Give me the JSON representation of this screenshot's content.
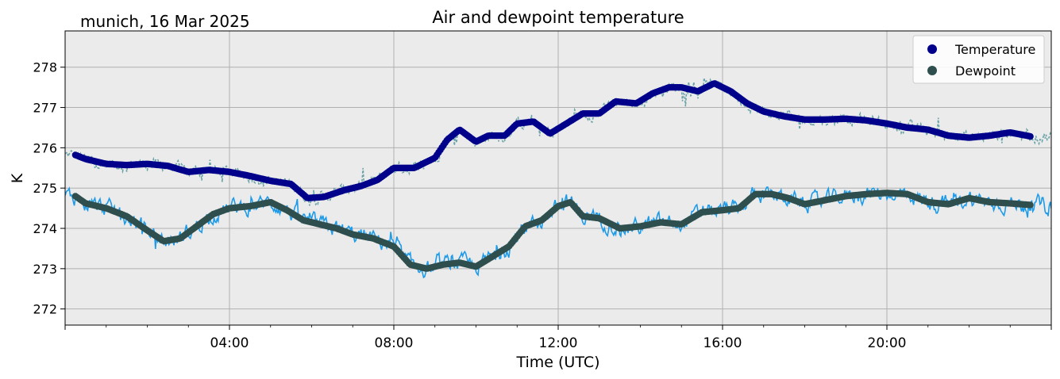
{
  "header": {
    "location_date": "munich, 16 Mar 2025",
    "title": "Air and dewpoint temperature"
  },
  "colors": {
    "panel_background": "#ebebeb",
    "grid": "#b0b0b0",
    "temperature_raw": "#6aa3a8",
    "temperature_smooth": "#00008b",
    "dewpoint_raw": "#1e9be8",
    "dewpoint_smooth": "#2f4f4f"
  },
  "chart_data": {
    "type": "line",
    "title": "Air and dewpoint temperature",
    "xlabel": "Time (UTC)",
    "ylabel": "K",
    "x_unit": "hours UTC on 16 Mar 2025",
    "xlim": [
      0,
      24
    ],
    "ylim": [
      271.6,
      278.9
    ],
    "x_ticks": [
      0,
      4,
      8,
      12,
      16,
      20,
      24
    ],
    "x_tick_labels": [
      "",
      "04:00",
      "08:00",
      "12:00",
      "16:00",
      "20:00",
      ""
    ],
    "y_ticks": [
      272,
      273,
      274,
      275,
      276,
      277,
      278
    ],
    "y_tick_labels": [
      "272",
      "273",
      "274",
      "275",
      "276",
      "277",
      "278"
    ],
    "grid": true,
    "legend_position": "top-right",
    "series": [
      {
        "name": "Temperature",
        "x": [
          0.25,
          0.5,
          1.0,
          1.5,
          2.0,
          2.5,
          3.0,
          3.5,
          4.0,
          4.5,
          5.0,
          5.5,
          5.9,
          6.3,
          6.8,
          7.2,
          7.6,
          8.0,
          8.5,
          9.0,
          9.3,
          9.6,
          10.0,
          10.3,
          10.7,
          11.0,
          11.4,
          11.8,
          12.2,
          12.6,
          13.0,
          13.4,
          13.9,
          14.3,
          14.7,
          15.0,
          15.4,
          15.8,
          16.2,
          16.6,
          17.0,
          17.5,
          18.0,
          18.5,
          19.0,
          19.5,
          20.0,
          20.5,
          21.0,
          21.5,
          22.0,
          22.5,
          23.0,
          23.5
        ],
        "y": [
          275.82,
          275.72,
          275.6,
          275.57,
          275.6,
          275.55,
          275.4,
          275.45,
          275.4,
          275.3,
          275.18,
          275.1,
          274.75,
          274.78,
          274.95,
          275.05,
          275.2,
          275.5,
          275.5,
          275.75,
          276.2,
          276.45,
          276.15,
          276.3,
          276.3,
          276.6,
          276.65,
          276.35,
          276.6,
          276.85,
          276.85,
          277.15,
          277.1,
          277.35,
          277.5,
          277.5,
          277.4,
          277.6,
          277.4,
          277.1,
          276.9,
          276.78,
          276.7,
          276.7,
          276.72,
          276.68,
          276.6,
          276.5,
          276.45,
          276.3,
          276.25,
          276.3,
          276.38,
          276.28
        ]
      },
      {
        "name": "Dewpoint",
        "x": [
          0.25,
          0.5,
          1.0,
          1.5,
          2.0,
          2.4,
          2.8,
          3.2,
          3.6,
          4.0,
          4.5,
          5.0,
          5.4,
          5.8,
          6.2,
          6.6,
          7.0,
          7.5,
          8.0,
          8.4,
          8.8,
          9.2,
          9.6,
          10.0,
          10.4,
          10.8,
          11.2,
          11.6,
          12.0,
          12.3,
          12.6,
          13.0,
          13.5,
          14.0,
          14.5,
          15.0,
          15.5,
          16.0,
          16.4,
          16.8,
          17.2,
          17.6,
          18.0,
          18.5,
          19.0,
          19.5,
          20.0,
          20.5,
          21.0,
          21.5,
          22.0,
          22.5,
          23.0,
          23.5
        ],
        "y": [
          274.8,
          274.62,
          274.5,
          274.3,
          273.95,
          273.68,
          273.75,
          274.05,
          274.35,
          274.5,
          274.55,
          274.65,
          274.45,
          274.2,
          274.1,
          274.0,
          273.85,
          273.75,
          273.55,
          273.1,
          273.0,
          273.1,
          273.15,
          273.05,
          273.3,
          273.55,
          274.05,
          274.2,
          274.55,
          274.65,
          274.3,
          274.25,
          274.0,
          274.05,
          274.15,
          274.1,
          274.4,
          274.45,
          274.5,
          274.85,
          274.85,
          274.75,
          274.6,
          274.7,
          274.8,
          274.85,
          274.88,
          274.85,
          274.65,
          274.6,
          274.75,
          274.65,
          274.62,
          274.58
        ]
      }
    ]
  }
}
